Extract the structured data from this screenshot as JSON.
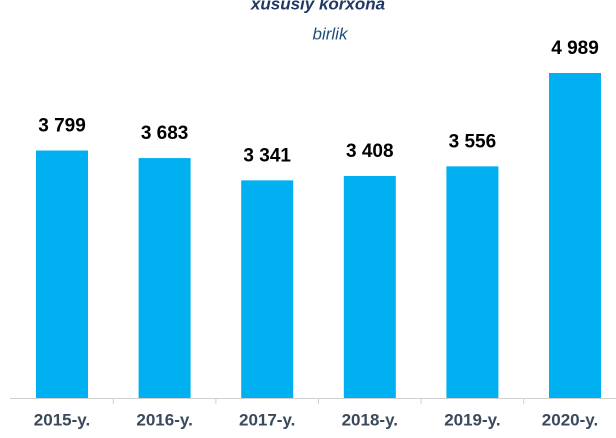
{
  "chart_data": {
    "type": "bar",
    "title": "xususiy korxona",
    "subtitle": "birlik",
    "categories": [
      "2015-y.",
      "2016-y.",
      "2017-y.",
      "2018-y.",
      "2019-y.",
      "2020-y."
    ],
    "values": [
      3799,
      3683,
      3341,
      3408,
      3556,
      4989
    ],
    "value_labels": [
      "3 799",
      "3 683",
      "3 341",
      "3 408",
      "3 556",
      "4 989"
    ],
    "color": "#00b0f0"
  }
}
